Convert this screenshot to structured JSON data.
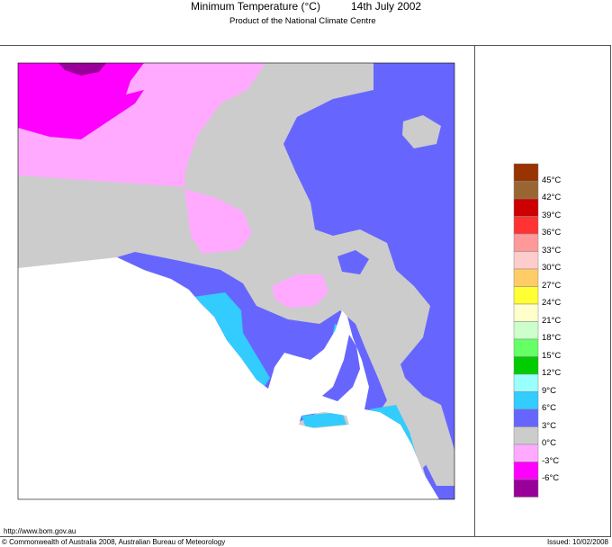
{
  "header": {
    "title": "Minimum Temperature (°C)",
    "date": "14th July 2002",
    "subtitle": "Product of the National Climate Centre"
  },
  "footer": {
    "url": "http://www.bom.gov.au",
    "copyright": "© Commonwealth of Australia 2008, Australian Bureau of Meteorology",
    "issued": "Issued: 10/02/2008"
  },
  "legend": {
    "colors": [
      "#993300",
      "#996633",
      "#cc0000",
      "#ff3333",
      "#ff9999",
      "#ffcccc",
      "#ffcc66",
      "#ffff33",
      "#ffffcc",
      "#ccffcc",
      "#66ff66",
      "#00cc00",
      "#99ffff",
      "#33ccff",
      "#6666ff",
      "#cccccc",
      "#ffaaff",
      "#ff00ff",
      "#990099"
    ],
    "labels": [
      "45°C",
      "42°C",
      "39°C",
      "36°C",
      "33°C",
      "30°C",
      "27°C",
      "24°C",
      "21°C",
      "18°C",
      "15°C",
      "12°C",
      "9°C",
      "6°C",
      "3°C",
      "0°C",
      "-3°C",
      "-6°C"
    ]
  }
}
